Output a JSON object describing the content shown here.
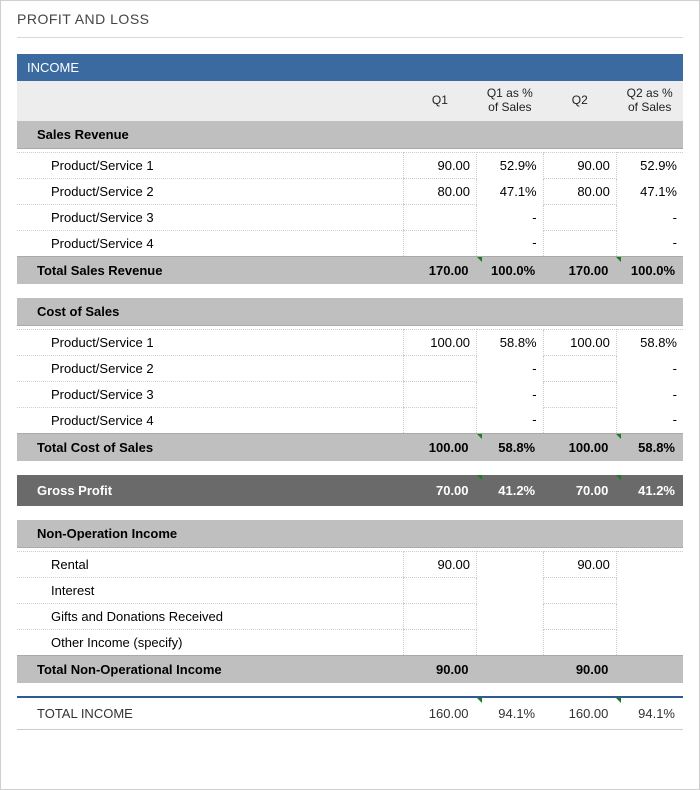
{
  "title": "PROFIT AND LOSS",
  "section": "INCOME",
  "headers": {
    "q1": "Q1",
    "q1p": "Q1 as % of Sales",
    "q2": "Q2",
    "q2p": "Q2 as % of Sales"
  },
  "colors": {
    "section_bar": "#3b6aa0",
    "subhead_bg": "#bfbfbf",
    "head_bg": "#ededed",
    "gp_bg": "#6a6a6a",
    "tick": "#1a7f1a",
    "rule": "#cfcfcf",
    "income_rule": "#2f5a96"
  },
  "sales": {
    "label": "Sales Revenue",
    "rows": [
      {
        "label": "Product/Service 1",
        "q1": "90.00",
        "q1p": "52.9%",
        "q2": "90.00",
        "q2p": "52.9%"
      },
      {
        "label": "Product/Service 2",
        "q1": "80.00",
        "q1p": "47.1%",
        "q2": "80.00",
        "q2p": "47.1%"
      },
      {
        "label": "Product/Service 3",
        "q1": "",
        "q1p": "-",
        "q2": "",
        "q2p": "-"
      },
      {
        "label": "Product/Service 4",
        "q1": "",
        "q1p": "-",
        "q2": "",
        "q2p": "-"
      }
    ],
    "total": {
      "label": "Total Sales Revenue",
      "q1": "170.00",
      "q1p": "100.0%",
      "q2": "170.00",
      "q2p": "100.0%"
    }
  },
  "cost": {
    "label": "Cost of Sales",
    "rows": [
      {
        "label": "Product/Service 1",
        "q1": "100.00",
        "q1p": "58.8%",
        "q2": "100.00",
        "q2p": "58.8%"
      },
      {
        "label": "Product/Service 2",
        "q1": "",
        "q1p": "-",
        "q2": "",
        "q2p": "-"
      },
      {
        "label": "Product/Service 3",
        "q1": "",
        "q1p": "-",
        "q2": "",
        "q2p": "-"
      },
      {
        "label": "Product/Service 4",
        "q1": "",
        "q1p": "-",
        "q2": "",
        "q2p": "-"
      }
    ],
    "total": {
      "label": "Total Cost of Sales",
      "q1": "100.00",
      "q1p": "58.8%",
      "q2": "100.00",
      "q2p": "58.8%"
    }
  },
  "gross": {
    "label": "Gross Profit",
    "q1": "70.00",
    "q1p": "41.2%",
    "q2": "70.00",
    "q2p": "41.2%"
  },
  "nonop": {
    "label": "Non-Operation Income",
    "rows": [
      {
        "label": "Rental",
        "q1": "90.00",
        "q1p": "",
        "q2": "90.00",
        "q2p": ""
      },
      {
        "label": "Interest",
        "q1": "",
        "q1p": "",
        "q2": "",
        "q2p": ""
      },
      {
        "label": "Gifts and Donations Received",
        "q1": "",
        "q1p": "",
        "q2": "",
        "q2p": ""
      },
      {
        "label": "Other Income (specify)",
        "q1": "",
        "q1p": "",
        "q2": "",
        "q2p": ""
      }
    ],
    "total": {
      "label": "Total Non-Operational Income",
      "q1": "90.00",
      "q1p": "",
      "q2": "90.00",
      "q2p": ""
    }
  },
  "total_income": {
    "label": "TOTAL INCOME",
    "q1": "160.00",
    "q1p": "94.1%",
    "q2": "160.00",
    "q2p": "94.1%"
  }
}
